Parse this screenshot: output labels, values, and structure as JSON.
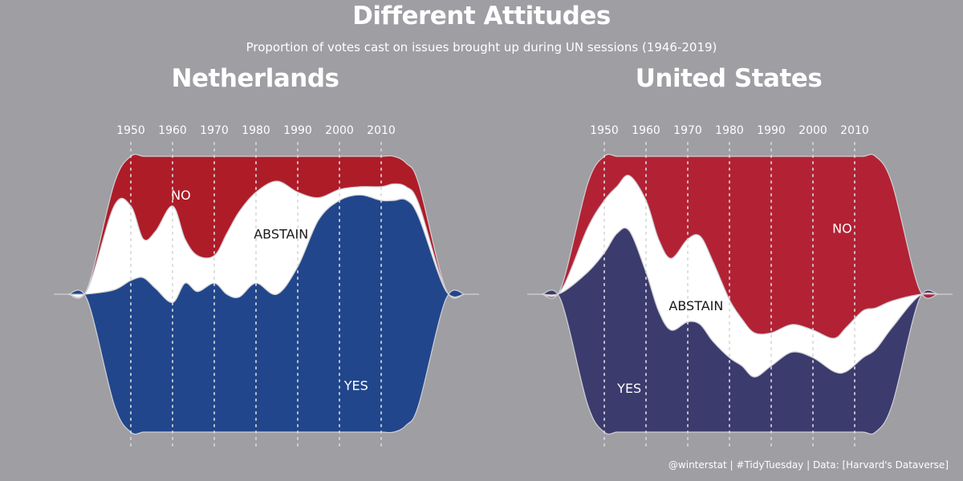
{
  "header": {
    "title": "Different Attitudes",
    "subtitle": "Proportion of votes cast on issues brought up during UN sessions (1946-2019)"
  },
  "caption": "@winterstat | #TidyTuesday | Data: [Harvard's Dataverse]",
  "colors": {
    "background": "#9e9ea3",
    "nl_no": "#ae1c28",
    "nl_abstain": "#ffffff",
    "nl_yes": "#21468b",
    "us_no": "#b22234",
    "us_abstain": "#ffffff",
    "us_yes": "#3c3b6e",
    "gridline": "#d8d8dc"
  },
  "chart_data": [
    {
      "type": "area",
      "title": "Netherlands",
      "x_ticks": [
        "1950",
        "1960",
        "1970",
        "1980",
        "1990",
        "2000",
        "2010"
      ],
      "x": [
        1946,
        1950,
        1953,
        1956,
        1960,
        1963,
        1966,
        1970,
        1973,
        1976,
        1980,
        1985,
        1990,
        1995,
        2000,
        2005,
        2010,
        2013,
        2016,
        2019
      ],
      "series": [
        {
          "name": "YES",
          "label": "YES",
          "values": [
            0.52,
            0.55,
            0.56,
            0.52,
            0.47,
            0.54,
            0.51,
            0.54,
            0.5,
            0.49,
            0.54,
            0.5,
            0.6,
            0.77,
            0.84,
            0.86,
            0.84,
            0.84,
            0.86,
            0.85
          ]
        },
        {
          "name": "ABSTAIN",
          "label": "ABSTAIN",
          "values": [
            0.38,
            0.27,
            0.14,
            0.21,
            0.35,
            0.16,
            0.13,
            0.1,
            0.22,
            0.31,
            0.33,
            0.41,
            0.27,
            0.08,
            0.04,
            0.03,
            0.05,
            0.06,
            0.05,
            0.06
          ]
        },
        {
          "name": "NO",
          "label": "NO",
          "values": [
            0.1,
            0.18,
            0.3,
            0.27,
            0.18,
            0.3,
            0.36,
            0.36,
            0.28,
            0.2,
            0.13,
            0.09,
            0.13,
            0.15,
            0.12,
            0.11,
            0.11,
            0.1,
            0.09,
            0.09
          ]
        }
      ],
      "label_positions": {
        "NO": [
          1962,
          0.86
        ],
        "ABSTAIN": [
          1986,
          0.72
        ],
        "YES": [
          2004,
          0.17
        ]
      }
    },
    {
      "type": "area",
      "title": "United States",
      "x_ticks": [
        "1950",
        "1960",
        "1970",
        "1980",
        "1990",
        "2000",
        "2010"
      ],
      "x": [
        1946,
        1950,
        1953,
        1956,
        1960,
        1963,
        1966,
        1970,
        1973,
        1976,
        1980,
        1983,
        1986,
        1990,
        1995,
        2000,
        2005,
        2008,
        2012,
        2015,
        2019
      ],
      "series": [
        {
          "name": "YES",
          "label": "YES",
          "values": [
            0.6,
            0.65,
            0.72,
            0.73,
            0.58,
            0.44,
            0.37,
            0.4,
            0.39,
            0.33,
            0.27,
            0.24,
            0.2,
            0.24,
            0.29,
            0.27,
            0.22,
            0.22,
            0.27,
            0.3,
            0.35
          ]
        },
        {
          "name": "ABSTAIN",
          "label": "ABSTAIN",
          "values": [
            0.2,
            0.19,
            0.17,
            0.2,
            0.26,
            0.26,
            0.26,
            0.3,
            0.32,
            0.29,
            0.21,
            0.17,
            0.16,
            0.12,
            0.1,
            0.1,
            0.12,
            0.16,
            0.17,
            0.15,
            0.12
          ]
        },
        {
          "name": "NO",
          "label": "NO",
          "values": [
            0.2,
            0.16,
            0.11,
            0.07,
            0.16,
            0.3,
            0.37,
            0.3,
            0.29,
            0.38,
            0.52,
            0.59,
            0.64,
            0.64,
            0.61,
            0.63,
            0.66,
            0.62,
            0.56,
            0.55,
            0.53
          ]
        }
      ],
      "label_positions": {
        "NO": [
          2007,
          0.74
        ],
        "ABSTAIN": [
          1972,
          0.46
        ],
        "YES": [
          1956,
          0.16
        ]
      }
    }
  ]
}
